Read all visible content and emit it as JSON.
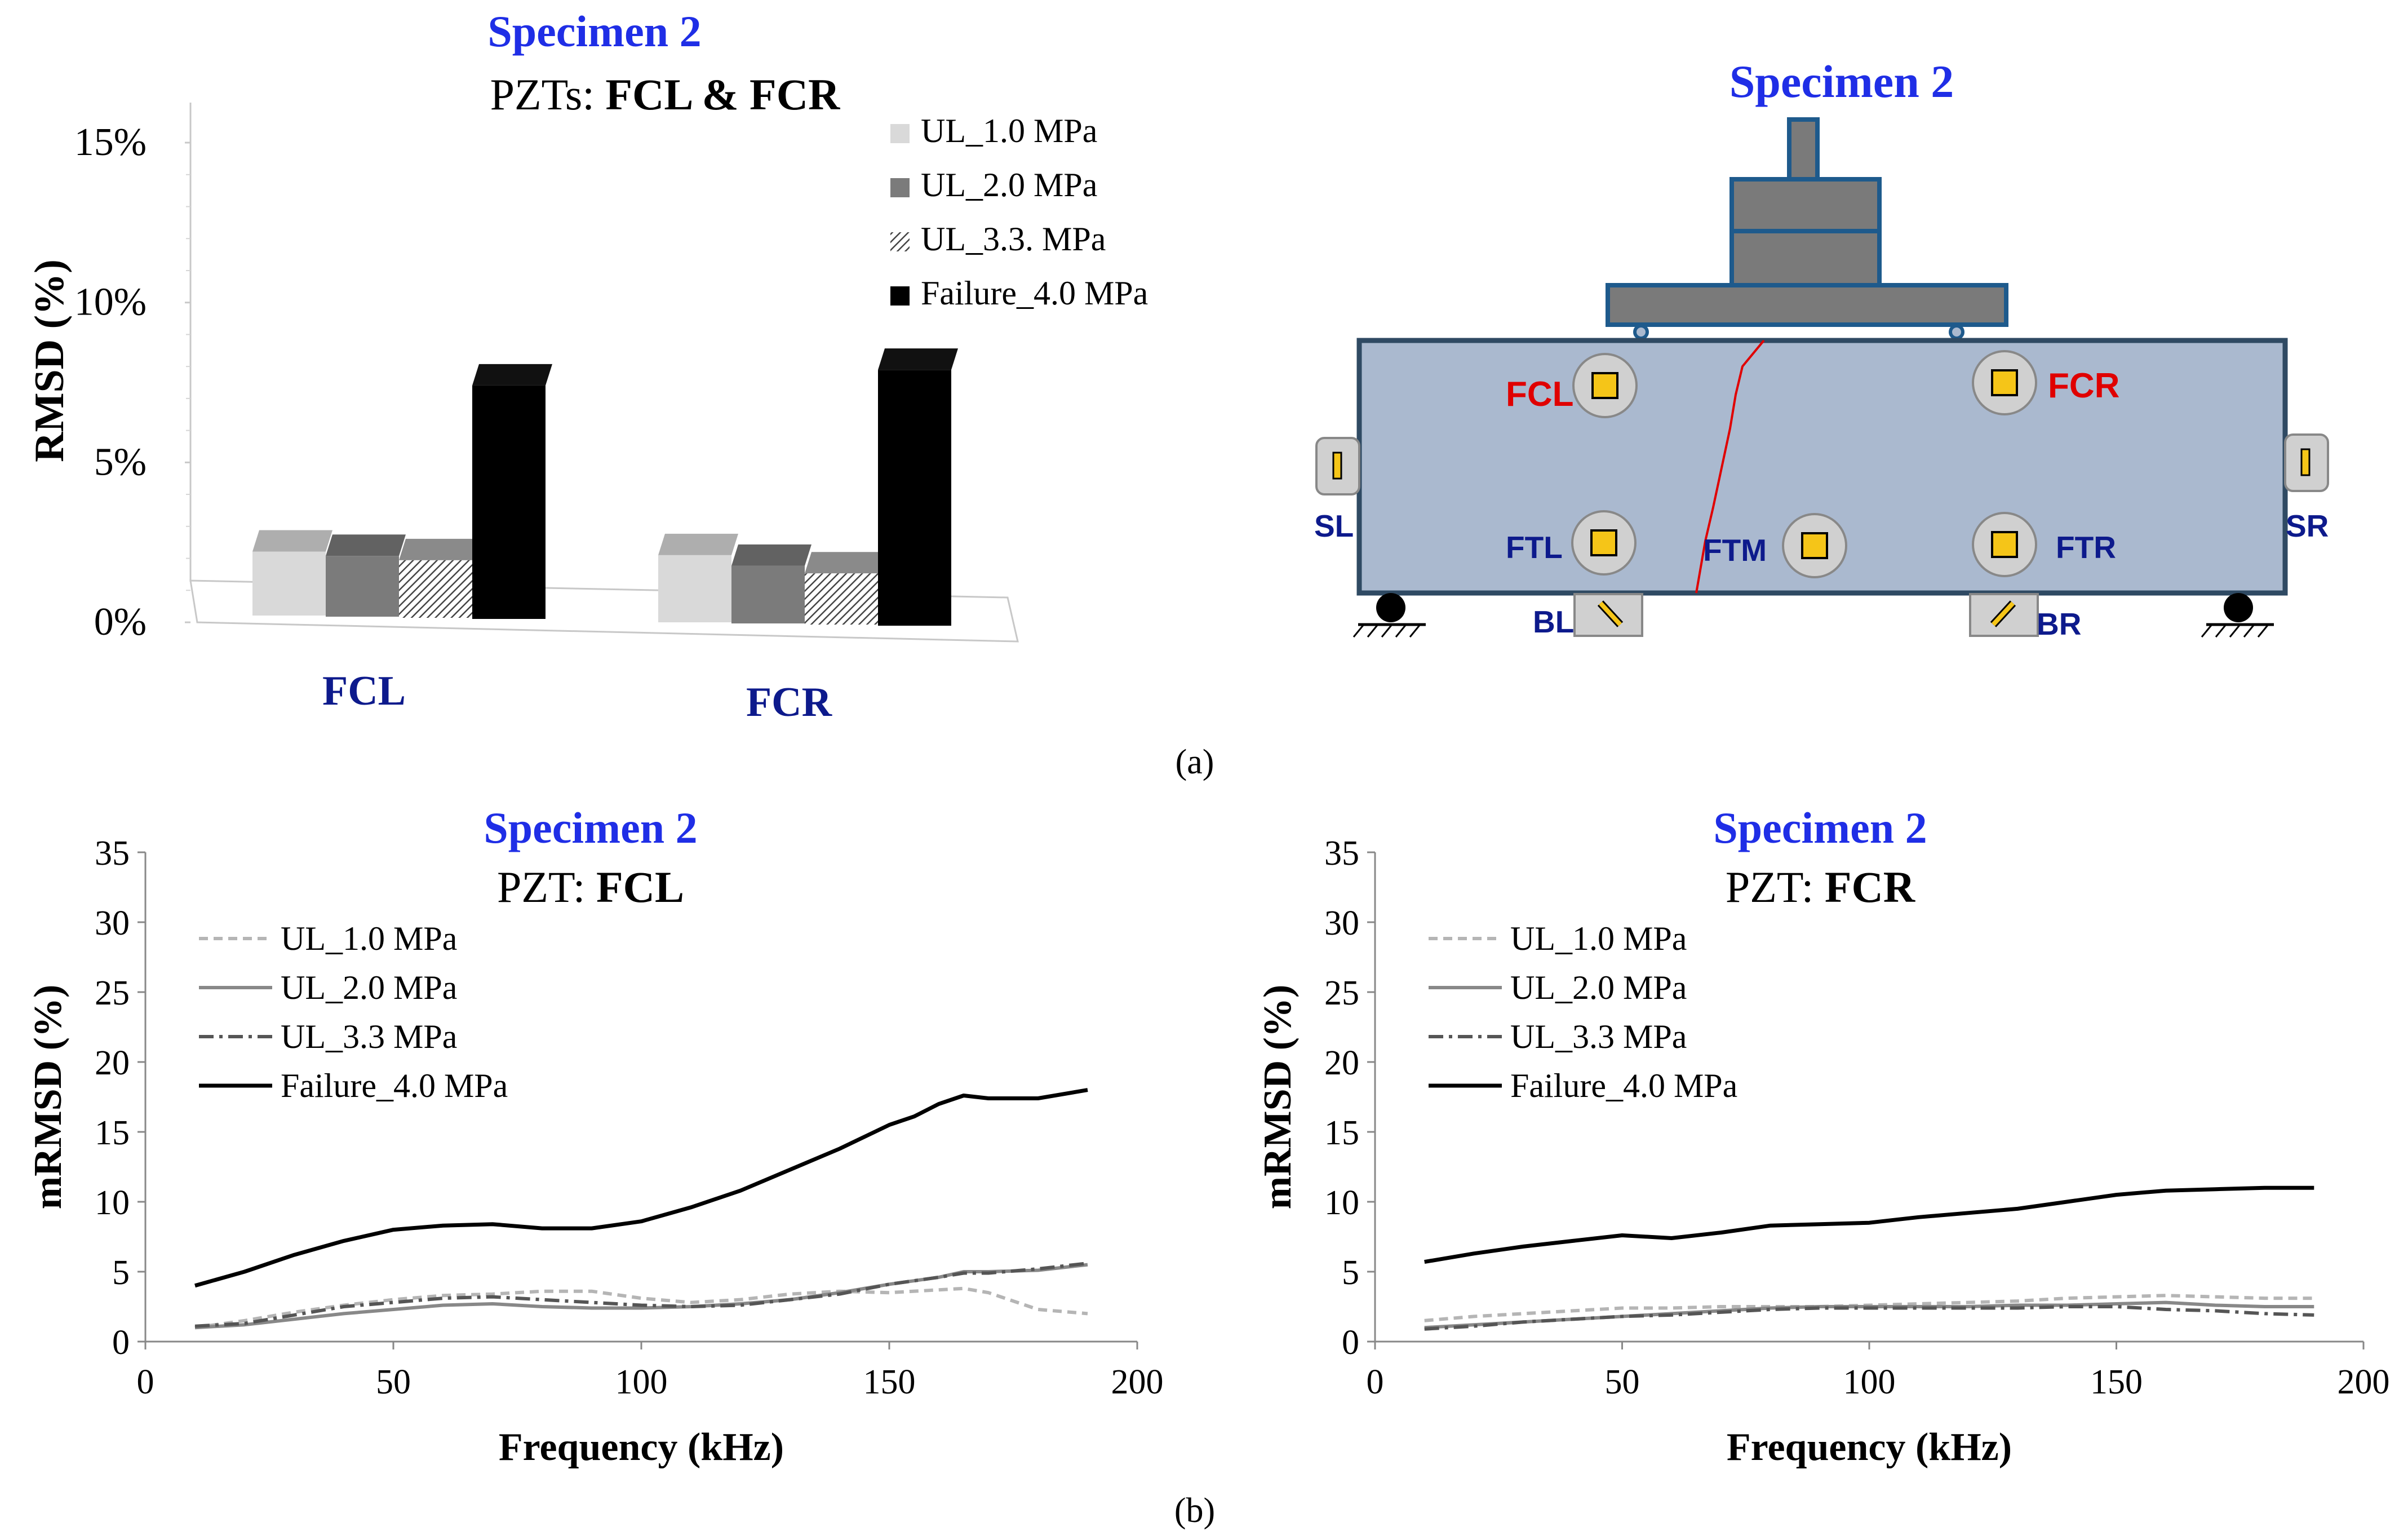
{
  "panel_labels": {
    "a": "(a)",
    "b": "(b)"
  },
  "colors": {
    "title_blue": "#1f2ee6",
    "label_navy": "#0d1a8c",
    "beam_fill": "#aab9cf",
    "beam_stroke": "#2f4a63",
    "steel_fill": "#7a7a7a",
    "steel_stroke": "#1e5a8c",
    "pzt_yellow": "#f5c518",
    "red": "#e00000"
  },
  "bar_chart": {
    "title_blue": "Specimen 2",
    "title_prefix": "PZTs: ",
    "title_bold": "FCL & FCR",
    "ylabel": "RMSD (%)"
  },
  "diagram": {
    "title": "Specimen 2",
    "labels": {
      "fcl": "FCL",
      "fcr": "FCR",
      "ftl": "FTL",
      "ftm": "FTM",
      "ftr": "FTR",
      "sl": "SL",
      "sr": "SR",
      "bl": "BL",
      "br": "BR"
    }
  },
  "chart_data": [
    {
      "type": "bar",
      "title": "Specimen 2 PZTs: FCL & FCR",
      "xlabel": "",
      "ylabel": "RMSD (%)",
      "ylim": [
        0,
        15
      ],
      "yticks": [
        "0%",
        "5%",
        "10%",
        "15%"
      ],
      "categories": [
        "FCL",
        "FCR"
      ],
      "series": [
        {
          "name": "UL_1.0 MPa",
          "values": [
            2.0,
            2.1
          ],
          "color": "#d9d9d9"
        },
        {
          "name": "UL_2.0 MPa",
          "values": [
            1.9,
            1.8
          ],
          "color": "#7b7b7b"
        },
        {
          "name": "UL_3.3. MPa",
          "values": [
            1.8,
            1.6
          ],
          "color": "hatch"
        },
        {
          "name": "Failure_4.0 MPa",
          "values": [
            7.3,
            8.0
          ],
          "color": "#000000"
        }
      ],
      "legend": "top-right"
    },
    {
      "type": "line",
      "title_blue": "Specimen 2",
      "title_prefix": "PZT: ",
      "title_bold": "FCL",
      "xlabel": "Frequency (kHz)",
      "ylabel": "mRMSD (%)",
      "xlim": [
        0,
        200
      ],
      "ylim": [
        0,
        35
      ],
      "xticks": [
        0,
        50,
        100,
        150,
        200
      ],
      "yticks": [
        0,
        5,
        10,
        15,
        20,
        25,
        30,
        35
      ],
      "legend": "top-left",
      "series": [
        {
          "name": "UL_1.0 MPa",
          "style": "dashed",
          "color": "#b5b5b5",
          "x": [
            10,
            20,
            30,
            40,
            50,
            60,
            70,
            80,
            90,
            100,
            110,
            120,
            130,
            140,
            150,
            160,
            165,
            170,
            180,
            190
          ],
          "y": [
            1.0,
            1.5,
            2.1,
            2.6,
            3.0,
            3.3,
            3.4,
            3.6,
            3.6,
            3.1,
            2.8,
            3.0,
            3.4,
            3.6,
            3.5,
            3.7,
            3.8,
            3.5,
            2.3,
            2.0
          ]
        },
        {
          "name": "UL_2.0 MPa",
          "style": "solid",
          "color": "#888888",
          "x": [
            10,
            20,
            30,
            40,
            50,
            60,
            70,
            80,
            90,
            100,
            110,
            120,
            130,
            140,
            150,
            160,
            165,
            170,
            180,
            190
          ],
          "y": [
            1.0,
            1.2,
            1.6,
            2.0,
            2.3,
            2.6,
            2.7,
            2.5,
            2.4,
            2.4,
            2.5,
            2.7,
            3.0,
            3.5,
            4.1,
            4.6,
            5.0,
            5.0,
            5.1,
            5.5
          ]
        },
        {
          "name": "UL_3.3 MPa",
          "style": "dashdot",
          "color": "#555555",
          "x": [
            10,
            20,
            30,
            40,
            50,
            60,
            70,
            80,
            90,
            100,
            110,
            120,
            130,
            140,
            150,
            160,
            165,
            170,
            180,
            190
          ],
          "y": [
            1.1,
            1.3,
            1.9,
            2.5,
            2.8,
            3.1,
            3.2,
            3.0,
            2.8,
            2.6,
            2.5,
            2.6,
            3.0,
            3.4,
            4.1,
            4.6,
            4.9,
            4.9,
            5.2,
            5.6
          ]
        },
        {
          "name": "Failure_4.0 MPa",
          "style": "solid",
          "color": "#000000",
          "x": [
            10,
            20,
            30,
            40,
            50,
            60,
            70,
            80,
            90,
            100,
            110,
            120,
            130,
            140,
            150,
            155,
            160,
            165,
            170,
            180,
            190
          ],
          "y": [
            4.0,
            5.0,
            6.2,
            7.2,
            8.0,
            8.3,
            8.4,
            8.1,
            8.1,
            8.6,
            9.6,
            10.8,
            12.3,
            13.8,
            15.5,
            16.1,
            17.0,
            17.6,
            17.4,
            17.4,
            18.0
          ]
        }
      ]
    },
    {
      "type": "line",
      "title_blue": "Specimen 2",
      "title_prefix": "PZT: ",
      "title_bold": "FCR",
      "xlabel": "Frequency (kHz)",
      "ylabel": "mRMSD (%)",
      "xlim": [
        0,
        200
      ],
      "ylim": [
        0,
        35
      ],
      "xticks": [
        0,
        50,
        100,
        150,
        200
      ],
      "yticks": [
        0,
        5,
        10,
        15,
        20,
        25,
        30,
        35
      ],
      "legend": "top-left",
      "series": [
        {
          "name": "UL_1.0 MPa",
          "style": "dashed",
          "color": "#b5b5b5",
          "x": [
            10,
            20,
            30,
            40,
            50,
            60,
            70,
            80,
            90,
            100,
            110,
            120,
            130,
            140,
            150,
            160,
            170,
            180,
            190
          ],
          "y": [
            1.5,
            1.8,
            2.0,
            2.2,
            2.4,
            2.4,
            2.5,
            2.5,
            2.5,
            2.6,
            2.7,
            2.8,
            2.9,
            3.1,
            3.2,
            3.3,
            3.2,
            3.1,
            3.1
          ]
        },
        {
          "name": "UL_2.0 MPa",
          "style": "solid",
          "color": "#888888",
          "x": [
            10,
            20,
            30,
            40,
            50,
            60,
            70,
            80,
            90,
            100,
            110,
            120,
            130,
            140,
            150,
            160,
            170,
            180,
            190
          ],
          "y": [
            1.0,
            1.2,
            1.4,
            1.6,
            1.8,
            2.0,
            2.2,
            2.4,
            2.5,
            2.5,
            2.5,
            2.5,
            2.6,
            2.6,
            2.7,
            2.8,
            2.6,
            2.5,
            2.5
          ]
        },
        {
          "name": "UL_3.3 MPa",
          "style": "dashdot",
          "color": "#555555",
          "x": [
            10,
            20,
            30,
            40,
            50,
            60,
            70,
            80,
            90,
            100,
            110,
            120,
            130,
            140,
            150,
            160,
            170,
            180,
            190
          ],
          "y": [
            0.9,
            1.1,
            1.4,
            1.6,
            1.8,
            1.9,
            2.1,
            2.3,
            2.4,
            2.4,
            2.4,
            2.4,
            2.4,
            2.5,
            2.5,
            2.3,
            2.2,
            2.0,
            1.9
          ]
        },
        {
          "name": "Failure_4.0 MPa",
          "style": "solid",
          "color": "#000000",
          "x": [
            10,
            20,
            30,
            40,
            50,
            60,
            70,
            80,
            90,
            100,
            110,
            120,
            130,
            140,
            150,
            160,
            170,
            180,
            190
          ],
          "y": [
            5.7,
            6.3,
            6.8,
            7.2,
            7.6,
            7.4,
            7.8,
            8.3,
            8.4,
            8.5,
            8.9,
            9.2,
            9.5,
            10.0,
            10.5,
            10.8,
            10.9,
            11.0,
            11.0
          ]
        }
      ]
    }
  ]
}
